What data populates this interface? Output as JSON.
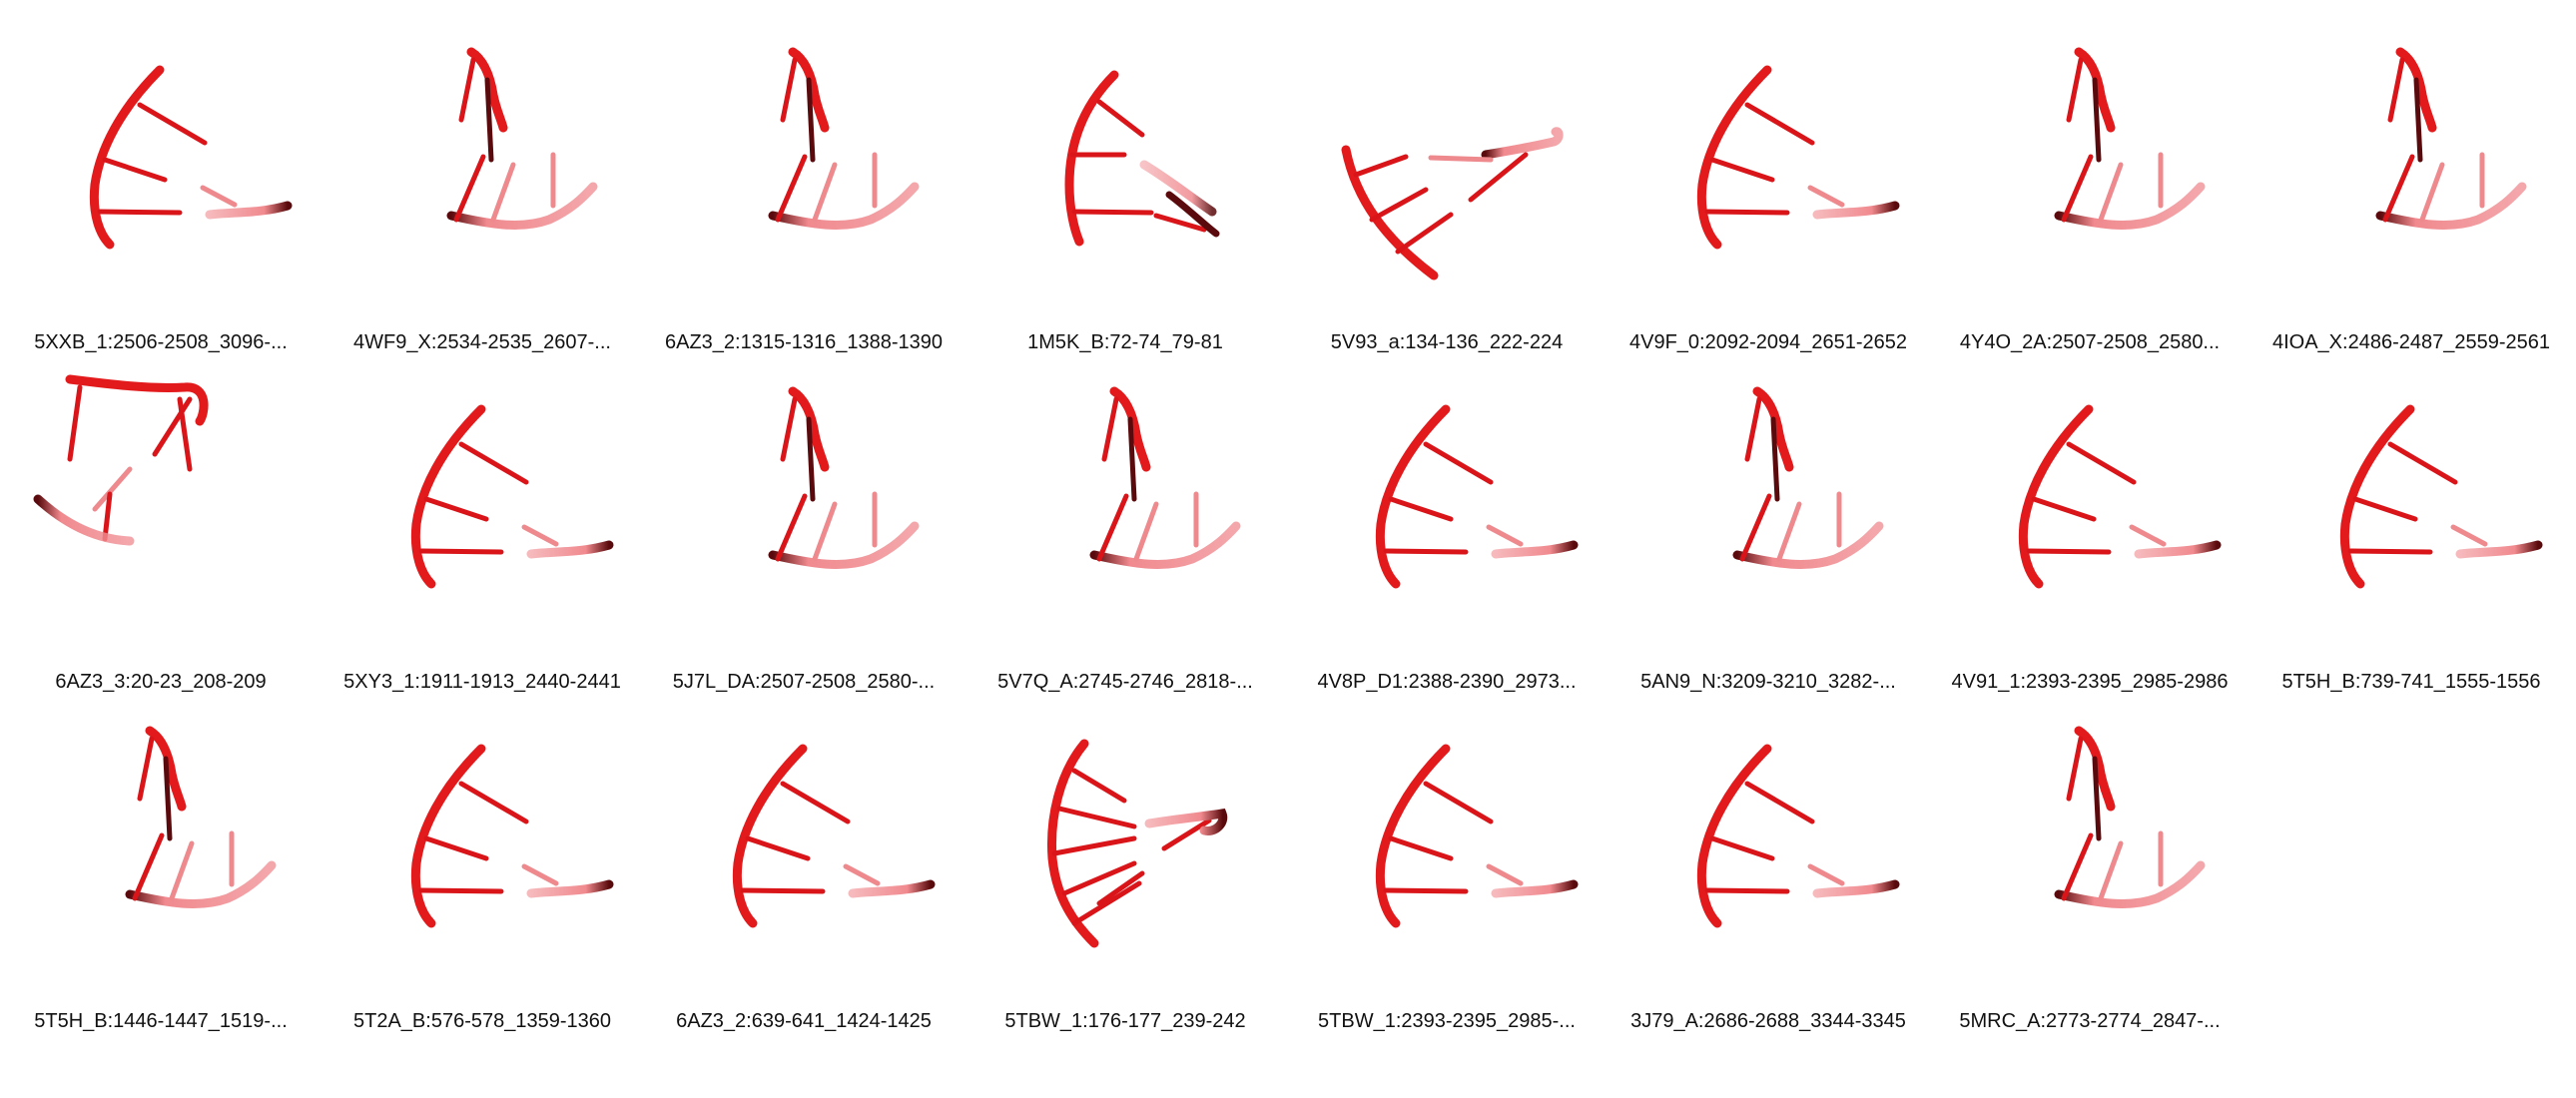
{
  "gallery": {
    "colors": {
      "backbone": "#e31a1c",
      "backbone_light": "#f08a8f",
      "backbone_dark": "#5a0a0c",
      "rung": "#d9151a",
      "rung_light": "#ee8a8e",
      "background": "#ffffff",
      "caption_text": "#111111"
    },
    "items": [
      {
        "label": "5XXB_1:2506-2508_3096-...",
        "shape": "A"
      },
      {
        "label": "4WF9_X:2534-2535_2607-...",
        "shape": "B"
      },
      {
        "label": "6AZ3_2:1315-1316_1388-1390",
        "shape": "B"
      },
      {
        "label": "1M5K_B:72-74_79-81",
        "shape": "D"
      },
      {
        "label": "5V93_a:134-136_222-224",
        "shape": "E"
      },
      {
        "label": "4V9F_0:2092-2094_2651-2652",
        "shape": "A"
      },
      {
        "label": "4Y4O_2A:2507-2508_2580...",
        "shape": "B"
      },
      {
        "label": "4IOA_X:2486-2487_2559-2561",
        "shape": "B"
      },
      {
        "label": "6AZ3_3:20-23_208-209",
        "shape": "F"
      },
      {
        "label": "5XY3_1:1911-1913_2440-2441",
        "shape": "A"
      },
      {
        "label": "5J7L_DA:2507-2508_2580-...",
        "shape": "B"
      },
      {
        "label": "5V7Q_A:2745-2746_2818-...",
        "shape": "B"
      },
      {
        "label": "4V8P_D1:2388-2390_2973...",
        "shape": "A"
      },
      {
        "label": "5AN9_N:3209-3210_3282-...",
        "shape": "B"
      },
      {
        "label": "4V91_1:2393-2395_2985-2986",
        "shape": "A"
      },
      {
        "label": "5T5H_B:739-741_1555-1556",
        "shape": "A"
      },
      {
        "label": "5T5H_B:1446-1447_1519-...",
        "shape": "B"
      },
      {
        "label": "5T2A_B:576-578_1359-1360",
        "shape": "A"
      },
      {
        "label": "6AZ3_2:639-641_1424-1425",
        "shape": "A"
      },
      {
        "label": "5TBW_1:176-177_239-242",
        "shape": "G"
      },
      {
        "label": "5TBW_1:2393-2395_2985-...",
        "shape": "A"
      },
      {
        "label": "3J79_A:2686-2688_3344-3345",
        "shape": "A"
      },
      {
        "label": "5MRC_A:2773-2774_2847-...",
        "shape": "B"
      }
    ]
  }
}
